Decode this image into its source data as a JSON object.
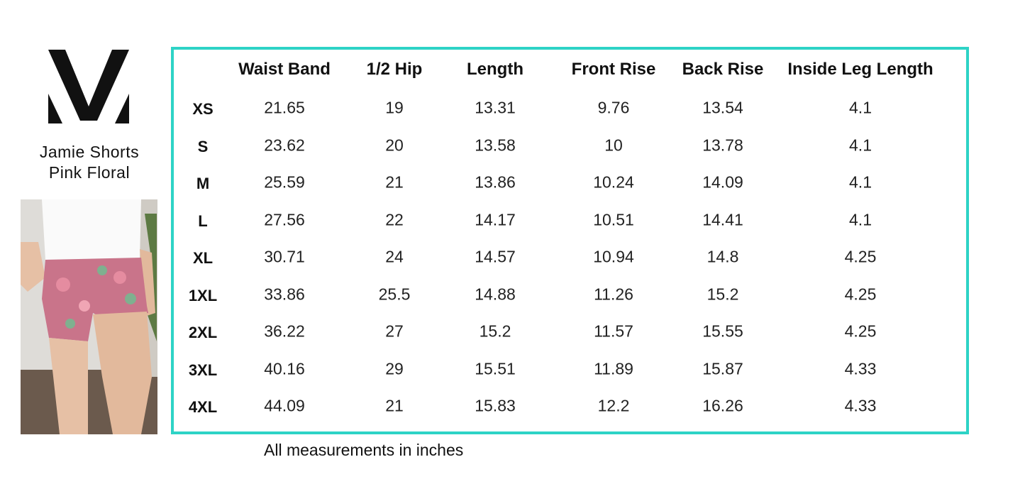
{
  "product": {
    "name": "Jamie Shorts",
    "variant": "Pink Floral"
  },
  "table": {
    "headers": [
      "Waist Band",
      "1/2 Hip",
      "Length",
      "Front Rise",
      "Back Rise",
      "Inside Leg Length"
    ],
    "rows": [
      [
        "XS",
        "21.65",
        "19",
        "13.31",
        "9.76",
        "13.54",
        "4.1"
      ],
      [
        "S",
        "23.62",
        "20",
        "13.58",
        "10",
        "13.78",
        "4.1"
      ],
      [
        "M",
        "25.59",
        "21",
        "13.86",
        "10.24",
        "14.09",
        "4.1"
      ],
      [
        "L",
        "27.56",
        "22",
        "14.17",
        "10.51",
        "14.41",
        "4.1"
      ],
      [
        "XL",
        "30.71",
        "24",
        "14.57",
        "10.94",
        "14.8",
        "4.25"
      ],
      [
        "1XL",
        "33.86",
        "25.5",
        "14.88",
        "11.26",
        "15.2",
        "4.25"
      ],
      [
        "2XL",
        "36.22",
        "27",
        "15.2",
        "11.57",
        "15.55",
        "4.25"
      ],
      [
        "3XL",
        "40.16",
        "29",
        "15.51",
        "11.89",
        "15.87",
        "4.33"
      ],
      [
        "4XL",
        "44.09",
        "21",
        "15.83",
        "12.2",
        "16.26",
        "4.33"
      ]
    ]
  },
  "note": "All measurements in inches"
}
